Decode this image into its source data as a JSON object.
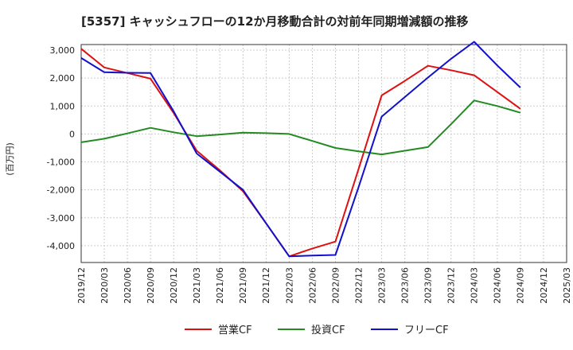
{
  "chart_data": {
    "type": "line",
    "title": "[5357]  キャッシュフローの12か月移動合計の対前年同期増減額の推移",
    "ylabel": "(百万円)",
    "xlabel": "",
    "ylim": [
      -4600,
      3200
    ],
    "yticks": [
      3000,
      2000,
      1000,
      0,
      -1000,
      -2000,
      -3000,
      -4000
    ],
    "ytick_labels": [
      "3,000",
      "2,000",
      "1,000",
      "0",
      "-1,000",
      "-2,000",
      "-3,000",
      "-4,000"
    ],
    "categories": [
      "2019/12",
      "2020/03",
      "2020/06",
      "2020/09",
      "2020/12",
      "2021/03",
      "2021/06",
      "2021/09",
      "2021/12",
      "2022/03",
      "2022/06",
      "2022/09",
      "2022/12",
      "2023/03",
      "2023/06",
      "2023/09",
      "2023/12",
      "2024/03",
      "2024/06",
      "2024/09",
      "2024/12",
      "2025/03"
    ],
    "grid": true,
    "legend_position": "bottom",
    "series": [
      {
        "name": "営業CF",
        "color": "#dd1111",
        "values": [
          3050,
          2380,
          2180,
          1980,
          750,
          -600,
          -1300,
          -2050,
          -3200,
          -4380,
          -4100,
          -3850,
          -1250,
          1380,
          1900,
          2440,
          2280,
          2100,
          1500,
          900,
          null,
          null
        ]
      },
      {
        "name": "投資CF",
        "color": "#228b22",
        "values": [
          -300,
          -170,
          20,
          220,
          60,
          -80,
          -20,
          50,
          30,
          0,
          -250,
          -500,
          -620,
          -730,
          -600,
          -470,
          350,
          1200,
          1000,
          760,
          null,
          null
        ]
      },
      {
        "name": "フリーCF",
        "color": "#1111cc",
        "values": [
          2720,
          2210,
          2190,
          2180,
          810,
          -700,
          -1350,
          -2000,
          -3200,
          -4380,
          -4350,
          -4330,
          -1900,
          620,
          1320,
          2020,
          2690,
          3300,
          2450,
          1660,
          null,
          null
        ]
      }
    ]
  }
}
